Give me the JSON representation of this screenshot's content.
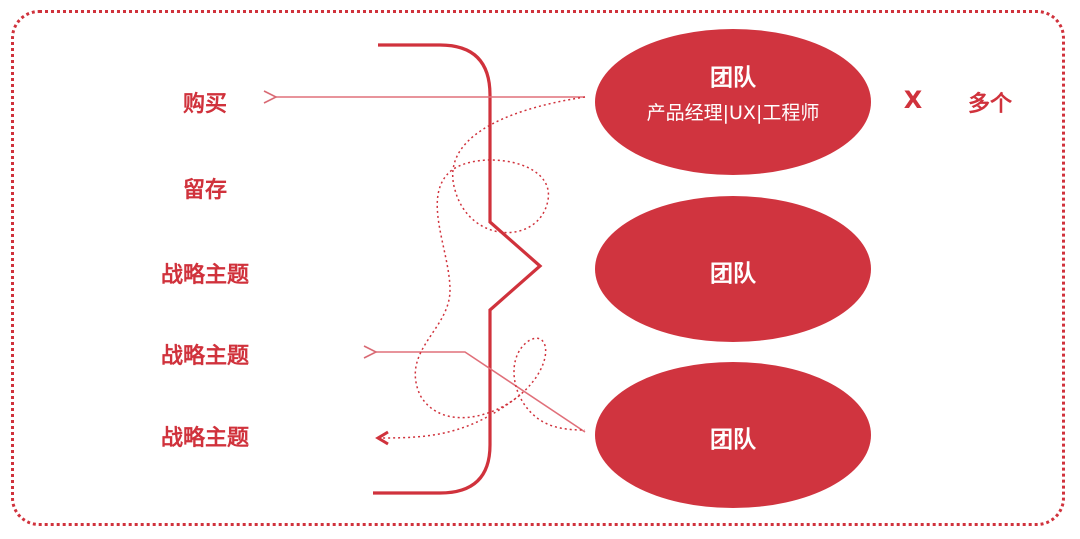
{
  "left_items": [
    {
      "label": "购买"
    },
    {
      "label": "留存"
    },
    {
      "label": "战略主题"
    },
    {
      "label": "战略主题"
    },
    {
      "label": "战略主题"
    }
  ],
  "teams": [
    {
      "title": "团队",
      "subtitle": "产品经理|UX|工程师"
    },
    {
      "title": "团队",
      "subtitle": ""
    },
    {
      "title": "团队",
      "subtitle": ""
    }
  ],
  "multiplier": {
    "symbol": "X",
    "label": "多个"
  },
  "colors": {
    "accent": "#d0323c",
    "ellipse_fill": "#d0343f",
    "arrow": "#e0707a"
  }
}
